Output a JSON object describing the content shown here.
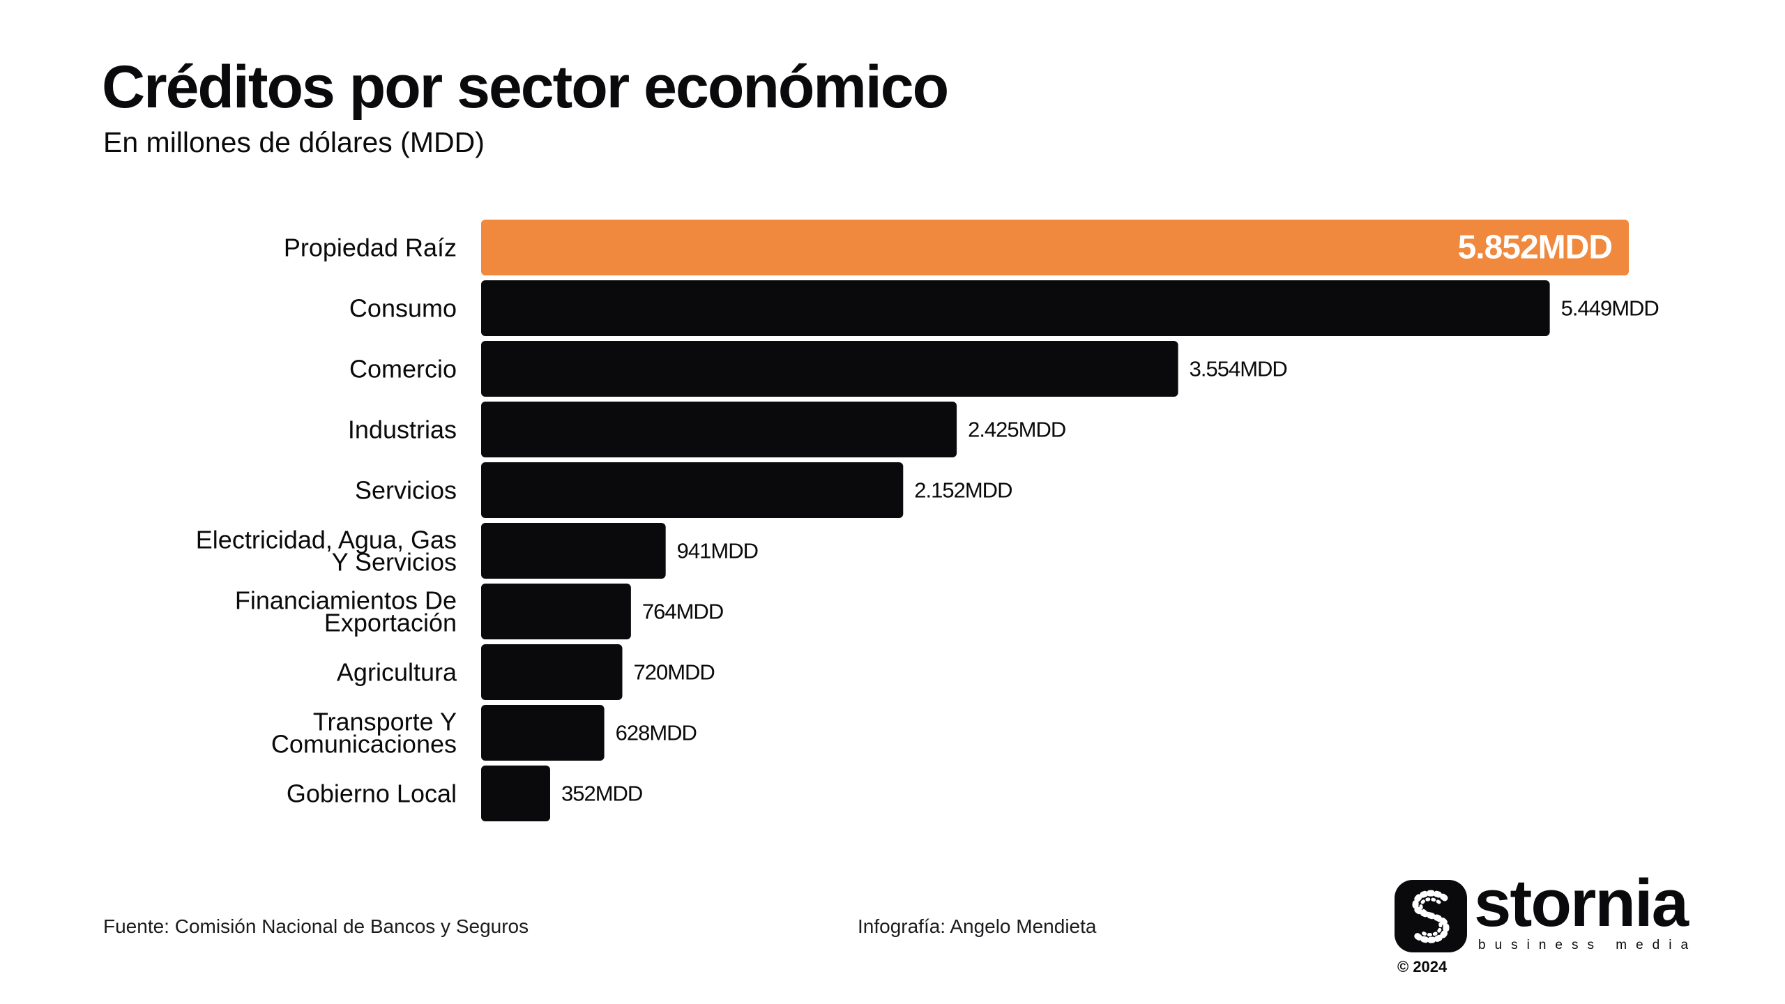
{
  "header": {
    "title": "Créditos por sector económico",
    "subtitle": "En millones de dólares (MDD)"
  },
  "chart_data": {
    "type": "bar",
    "orientation": "horizontal",
    "categories": [
      "Propiedad Raíz",
      "Consumo",
      "Comercio",
      "Industrias",
      "Servicios",
      "Electricidad, Agua, Gas Y Servicios",
      "Financiamientos De Exportación",
      "Agricultura",
      "Transporte Y Comunicaciones",
      "Gobierno Local"
    ],
    "category_lines": [
      [
        "Propiedad Raíz"
      ],
      [
        "Consumo"
      ],
      [
        "Comercio"
      ],
      [
        "Industrias"
      ],
      [
        "Servicios"
      ],
      [
        "Electricidad, Agua, Gas",
        "Y Servicios"
      ],
      [
        "Financiamientos De",
        "Exportación"
      ],
      [
        "Agricultura"
      ],
      [
        "Transporte Y",
        "Comunicaciones"
      ],
      [
        "Gobierno Local"
      ]
    ],
    "values": [
      5852,
      5449,
      3554,
      2425,
      2152,
      941,
      764,
      720,
      628,
      352
    ],
    "value_labels": [
      "5.852MDD",
      "5.449MDD",
      "3.554MDD",
      "2.425MDD",
      "2.152MDD",
      "941MDD",
      "764MDD",
      "720MDD",
      "628MDD",
      "352MDD"
    ],
    "highlight_index": 0,
    "colors": {
      "highlight": "#f0883d",
      "bar": "#0a0a0c",
      "highlight_label": "#ffffff",
      "label": "#0a0a0c"
    },
    "grid": false,
    "legend": "none",
    "xlim": [
      0,
      5852
    ]
  },
  "footer": {
    "source": "Fuente: Comisión Nacional de Bancos y Seguros",
    "credit": "Infografía: Angelo Mendieta"
  },
  "brand": {
    "name": "stornia",
    "tagline": "business media",
    "year": "© 2024"
  }
}
